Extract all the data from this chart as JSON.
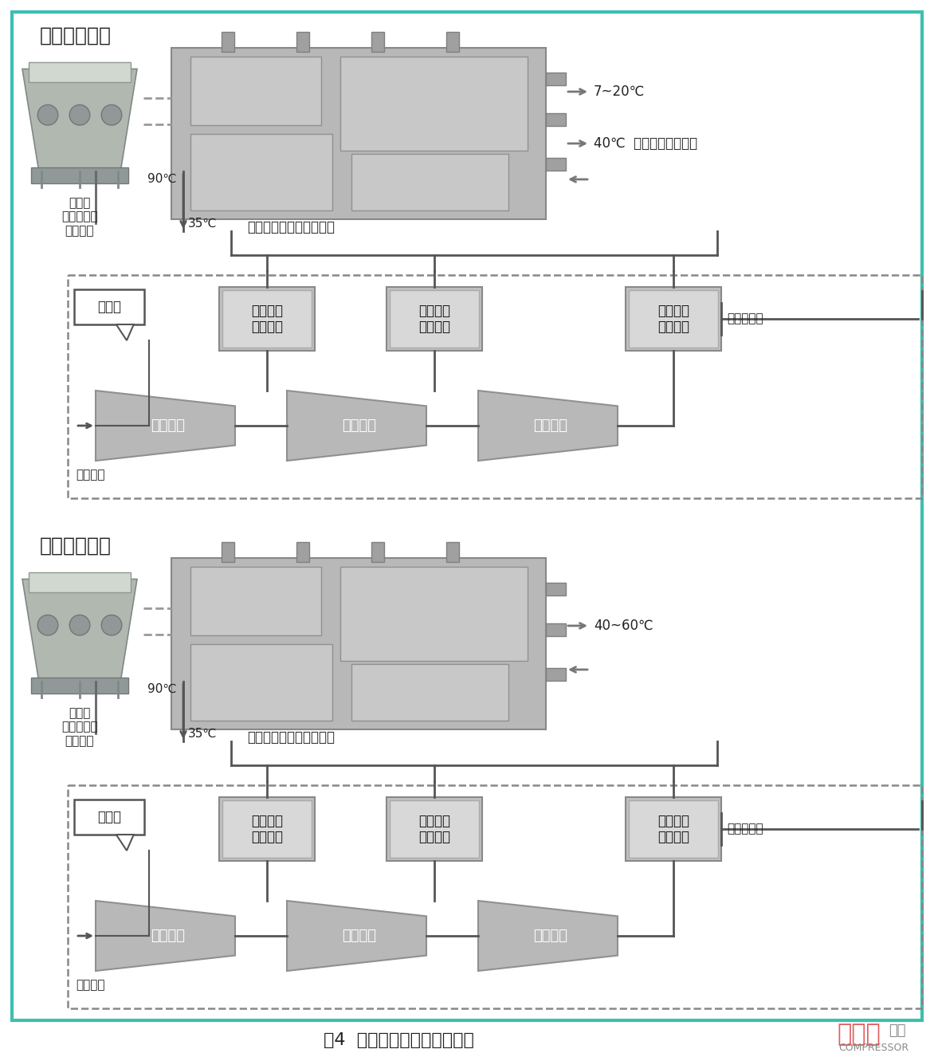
{
  "title": "图4  离心空压机节能改造原理",
  "bg_color": "#ffffff",
  "border_color": "#3dbfb0",
  "section1_title": "夏季制冷工况",
  "section2_title": "冬季制冷工况",
  "logo_text1": "压缩机",
  "logo_text2": "杂志",
  "logo_sub": "COMPRESSOR",
  "s1_temp1": "7~20℃",
  "s1_temp2": "40℃  生活热水或冷却水",
  "s1_temp3": "90℃",
  "s1_temp4": "35℃",
  "s1_unit_label": "空压机余热回收专用机组",
  "s2_temp1": "40~60℃",
  "s2_temp3": "90℃",
  "s2_temp4": "35℃",
  "s2_unit_label": "空压机余热回收专用机组",
  "cooling_tower_label": "冷却塔\n原冷却塔夏\n季制冷用",
  "compressor_label": "空压机",
  "air_in_label": "空气吸入",
  "air_out_label": "压缩空气出",
  "box1_label": "一级余热\n取热装置",
  "box2_label": "二级余热\n取热装置",
  "box3_label": "后冷余热\n取热装置",
  "comp1_label": "一级压缩",
  "comp2_label": "二级压缩",
  "comp3_label": "三级压缩",
  "teal": "#3dbfb0",
  "font_color": "#222222",
  "gray_light": "#c8c8c8",
  "gray_mid": "#aaaaaa",
  "gray_dark": "#888888",
  "line_color": "#555555",
  "trap_fc": "#aaaaaa",
  "trap_ec": "#888888",
  "hbox_fc": "#bbbbbb",
  "hbox_ec": "#888888"
}
